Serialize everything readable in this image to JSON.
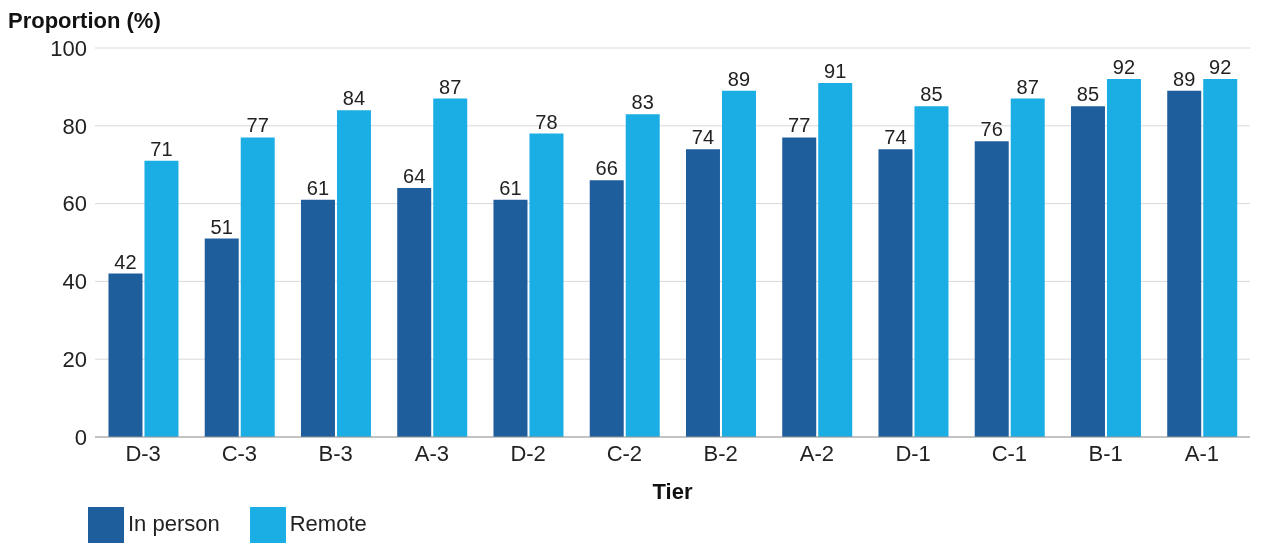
{
  "chart_data": {
    "type": "bar",
    "xlabel": "Tier",
    "ylabel": "Proportion (%)",
    "categories": [
      "D-3",
      "C-3",
      "B-3",
      "A-3",
      "D-2",
      "C-2",
      "B-2",
      "A-2",
      "D-1",
      "C-1",
      "B-1",
      "A-1"
    ],
    "series": [
      {
        "name": "In person",
        "color": "#1f5e9c",
        "values": [
          42,
          51,
          61,
          64,
          61,
          66,
          74,
          77,
          74,
          76,
          85,
          89
        ]
      },
      {
        "name": "Remote",
        "color": "#1aaee5",
        "values": [
          71,
          77,
          84,
          87,
          78,
          83,
          89,
          91,
          85,
          87,
          92,
          92
        ]
      }
    ],
    "ylim": [
      0,
      100
    ],
    "yticks": [
      0,
      20,
      40,
      60,
      80,
      100
    ],
    "grid": "y",
    "legend": "bottom left",
    "data_labels": true
  }
}
